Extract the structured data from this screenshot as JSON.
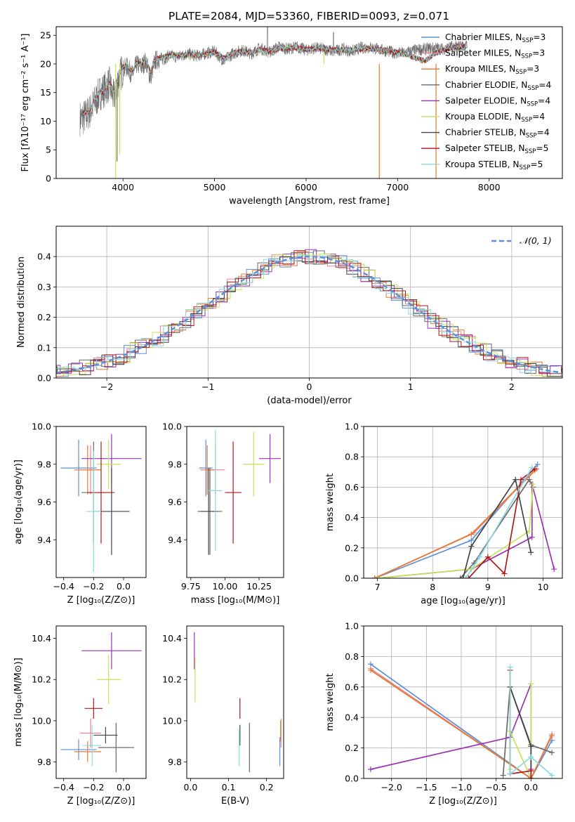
{
  "figure_title": "PLATE=2084, MJD=53360, FIBERID=0093, z=0.071",
  "colors": {
    "chabrier_miles": "#5b8fd9",
    "salpeter_miles": "#e5878f",
    "kroupa_miles": "#e8782f",
    "chabrier_elodie": "#6a6a6a",
    "salpeter_elodie": "#9a32b5",
    "kroupa_elodie": "#c5e35a",
    "chabrier_stelib": "#444444",
    "salpeter_stelib": "#b01818",
    "kroupa_stelib": "#8ad9e0",
    "gaussian": "#5b8fd9"
  },
  "chart_data": [
    {
      "id": "spectrum",
      "type": "line",
      "title": "PLATE=2084, MJD=53360, FIBERID=0093, z=0.071",
      "xlabel": "wavelength [Angstrom, rest frame]",
      "ylabel": "Flux [fλ10⁻¹⁷ erg cm⁻² s⁻¹ A⁻¹]",
      "xlim": [
        3270,
        8800
      ],
      "ylim": [
        0,
        26.5
      ],
      "xticks": [
        4000,
        5000,
        6000,
        7000,
        8000
      ],
      "yticks": [
        0,
        5,
        10,
        15,
        20,
        25
      ],
      "grid": false,
      "legend_position": "upper-right",
      "observed": {
        "x": [
          3550,
          3600,
          3650,
          3700,
          3750,
          3800,
          3850,
          3900,
          3950,
          4000,
          4050,
          4100,
          4150,
          4200,
          4250,
          4300,
          4350,
          4400,
          4450,
          4500,
          4600,
          4700,
          4800,
          4900,
          5000,
          5100,
          5200,
          5300,
          5400,
          5500,
          5600,
          5700,
          5800,
          5900,
          6000,
          6100,
          6200,
          6300,
          6400,
          6500,
          6600,
          6700,
          6800,
          6900,
          7000,
          7100,
          7200,
          7300,
          7400,
          7500,
          7600,
          7700
        ],
        "y": [
          10.5,
          11.0,
          12.0,
          13.5,
          15.0,
          15.5,
          16.5,
          14.0,
          17.5,
          19.0,
          19.5,
          18.0,
          20.0,
          19.5,
          20.5,
          17.5,
          20.5,
          21.0,
          20.8,
          21.5,
          21.2,
          21.8,
          21.4,
          21.8,
          22.2,
          20.5,
          21.8,
          22.4,
          21.8,
          22.8,
          22.0,
          23.0,
          22.6,
          23.0,
          22.4,
          22.8,
          22.6,
          22.2,
          22.6,
          22.2,
          22.8,
          22.9,
          22.5,
          22.2,
          21.8,
          22.0,
          22.4,
          22.6,
          22.8,
          22.6,
          23.0,
          23.1
        ]
      },
      "model": {
        "x": [
          3550,
          3600,
          3650,
          3700,
          3750,
          3800,
          3850,
          3900,
          3950,
          4000,
          4050,
          4100,
          4150,
          4200,
          4250,
          4300,
          4350,
          4400,
          4450,
          4500,
          4600,
          4700,
          4800,
          4900,
          5000,
          5100,
          5200,
          5300,
          5400,
          5500,
          5600,
          5700,
          5800,
          5900,
          6000,
          6100,
          6200,
          6300,
          6400,
          6500,
          6600,
          6700,
          6800,
          6900,
          7000,
          7100,
          7200,
          7300,
          7400,
          7500,
          7600,
          7700
        ],
        "y": [
          11.2,
          11.6,
          12.2,
          14.0,
          15.2,
          15.0,
          16.8,
          15.0,
          17.8,
          19.5,
          19.8,
          18.5,
          20.2,
          20.0,
          20.6,
          18.5,
          20.8,
          21.0,
          21.2,
          21.4,
          21.5,
          21.6,
          21.5,
          21.7,
          22.0,
          21.0,
          21.9,
          22.2,
          22.0,
          22.5,
          22.2,
          22.7,
          22.7,
          22.8,
          22.5,
          22.6,
          22.6,
          22.4,
          22.5,
          22.4,
          22.6,
          22.7,
          22.5,
          22.3,
          22.0,
          21.6,
          21.0,
          20.5,
          21.8,
          22.4,
          22.9,
          23.0
        ]
      },
      "series_names": [
        "Chabrier MILES, N<sub>SSP</sub>=3",
        "Salpeter MILES, N<sub>SSP</sub>=3",
        "Kroupa MILES, N<sub>SSP</sub>=3",
        "Chabrier ELODIE, N<sub>SSP</sub>=4",
        "Salpeter ELODIE, N<sub>SSP</sub>=4",
        "Kroupa ELODIE, N<sub>SSP</sub>=4",
        "Chabrier STELIB, N<sub>SSP</sub>=4",
        "Salpeter STELIB, N<sub>SSP</sub>=5",
        "Kroupa STELIB, N<sub>SSP</sub>=5"
      ],
      "legend": [
        {
          "label": "Chabrier MILES, N",
          "sub": "SSP",
          "tail": "=3",
          "color": "#5b8fd9"
        },
        {
          "label": "Salpeter MILES, N",
          "sub": "SSP",
          "tail": "=3",
          "color": "#e5878f"
        },
        {
          "label": "Kroupa MILES, N",
          "sub": "SSP",
          "tail": "=3",
          "color": "#e8782f"
        },
        {
          "label": "Chabrier ELODIE, N",
          "sub": "SSP",
          "tail": "=4",
          "color": "#6a6a6a"
        },
        {
          "label": "Salpeter ELODIE, N",
          "sub": "SSP",
          "tail": "=4",
          "color": "#9a32b5"
        },
        {
          "label": "Kroupa ELODIE, N",
          "sub": "SSP",
          "tail": "=4",
          "color": "#c5e35a"
        },
        {
          "label": "Chabrier STELIB, N",
          "sub": "SSP",
          "tail": "=4",
          "color": "#444444"
        },
        {
          "label": "Salpeter STELIB, N",
          "sub": "SSP",
          "tail": "=5",
          "color": "#b01818"
        },
        {
          "label": "Kroupa STELIB, N",
          "sub": "SSP",
          "tail": "=5",
          "color": "#8ad9e0"
        }
      ]
    },
    {
      "id": "residuals",
      "type": "area",
      "xlabel": "(data-model)/error",
      "ylabel": "Normed distribution",
      "xlim": [
        -2.5,
        2.5
      ],
      "ylim": [
        0,
        0.5
      ],
      "xticks": [
        -2,
        -1,
        0,
        1,
        2
      ],
      "yticks": [
        0.0,
        0.1,
        0.2,
        0.3,
        0.4
      ],
      "grid": true,
      "legend_position": "upper-right",
      "gaussian": {
        "name": "𝒩(0, 1)",
        "mean": 0,
        "sigma": 1
      },
      "histogram_peak": 0.4
    },
    {
      "id": "age_vs_z",
      "type": "scatter",
      "xlabel": "Z [log₁₀(Z/Z⊙)]",
      "ylabel": "age [log₁₀(age/yr)]",
      "xlim": [
        -0.45,
        0.15
      ],
      "ylim": [
        9.2,
        10.0
      ],
      "xticks": [
        -0.4,
        -0.2,
        0.0
      ],
      "yticks": [
        9.4,
        9.6,
        9.8,
        10.0
      ],
      "grid": false,
      "points": [
        {
          "x": -0.3,
          "y": 9.78,
          "ex": 0.12,
          "ey": 0.15
        },
        {
          "x": -0.22,
          "y": 9.77,
          "ex": 0.07,
          "ey": 0.13
        },
        {
          "x": -0.24,
          "y": 9.77,
          "ex": 0.09,
          "ey": 0.13
        },
        {
          "x": -0.2,
          "y": 9.65,
          "ex": 0.08,
          "ey": 0.27
        },
        {
          "x": -0.08,
          "y": 9.83,
          "ex": 0.2,
          "ey": 0.13
        },
        {
          "x": -0.1,
          "y": 9.8,
          "ex": 0.08,
          "ey": 0.13
        },
        {
          "x": -0.08,
          "y": 9.55,
          "ex": 0.12,
          "ey": 0.23
        },
        {
          "x": -0.15,
          "y": 9.65,
          "ex": 0.09,
          "ey": 0.27
        },
        {
          "x": -0.2,
          "y": 9.55,
          "ex": 0.05,
          "ey": 0.32
        }
      ]
    },
    {
      "id": "age_vs_mass",
      "type": "scatter",
      "xlabel": "mass [log₁₀(M/M⊙)]",
      "xlim": [
        9.72,
        10.43
      ],
      "ylim": [
        9.2,
        10.0
      ],
      "xticks": [
        9.75,
        10.0,
        10.25
      ],
      "yticks": [
        9.4,
        9.6,
        9.8,
        10.0
      ],
      "grid": false,
      "points": [
        {
          "x": 9.86,
          "y": 9.78,
          "ex": 0.05,
          "ey": 0.15
        },
        {
          "x": 9.93,
          "y": 9.77,
          "ex": 0.07,
          "ey": 0.13
        },
        {
          "x": 9.87,
          "y": 9.77,
          "ex": 0.05,
          "ey": 0.13
        },
        {
          "x": 9.89,
          "y": 9.55,
          "ex": 0.09,
          "ey": 0.23
        },
        {
          "x": 10.33,
          "y": 9.83,
          "ex": 0.08,
          "ey": 0.13
        },
        {
          "x": 10.21,
          "y": 9.8,
          "ex": 0.08,
          "ey": 0.17
        },
        {
          "x": 9.88,
          "y": 9.55,
          "ex": 0.06,
          "ey": 0.23
        },
        {
          "x": 10.06,
          "y": 9.65,
          "ex": 0.06,
          "ey": 0.27
        },
        {
          "x": 9.93,
          "y": 9.66,
          "ex": 0.05,
          "ey": 0.32
        }
      ]
    },
    {
      "id": "weight_vs_age",
      "type": "line",
      "xlabel": "age [log₁₀(age/yr)]",
      "ylabel": "mass weight",
      "xlim": [
        6.75,
        10.35
      ],
      "ylim": [
        0,
        1.0
      ],
      "xticks": [
        7,
        8,
        9,
        10
      ],
      "yticks": [
        0.0,
        0.2,
        0.4,
        0.6,
        0.8,
        1.0
      ],
      "grid": true,
      "series": [
        {
          "x": [
            6.95,
            8.7,
            9.9
          ],
          "y": [
            0.0,
            0.25,
            0.75
          ]
        },
        {
          "x": [
            6.95,
            8.75,
            9.88
          ],
          "y": [
            0.0,
            0.3,
            0.72
          ]
        },
        {
          "x": [
            6.95,
            8.7,
            9.85
          ],
          "y": [
            0.0,
            0.29,
            0.71
          ]
        },
        {
          "x": [
            8.5,
            8.75,
            9.75,
            9.82
          ],
          "y": [
            0.0,
            0.1,
            0.65,
            0.6
          ]
        },
        {
          "x": [
            7.0,
            8.7,
            9.8,
            9.8,
            10.2
          ],
          "y": [
            0.0,
            0.06,
            0.27,
            0.62,
            0.06
          ]
        },
        {
          "x": [
            7.0,
            8.7,
            9.75,
            9.82
          ],
          "y": [
            0.0,
            0.06,
            0.31,
            0.62
          ]
        },
        {
          "x": [
            8.55,
            8.7,
            9.5,
            9.78
          ],
          "y": [
            0.0,
            0.21,
            0.65,
            0.17
          ]
        },
        {
          "x": [
            8.65,
            9.0,
            9.3,
            9.6,
            9.85
          ],
          "y": [
            0.0,
            0.14,
            0.03,
            0.65,
            0.72
          ]
        },
        {
          "x": [
            8.6,
            8.85,
            9.8
          ],
          "y": [
            0.0,
            0.14,
            0.73
          ]
        }
      ]
    },
    {
      "id": "mass_vs_z",
      "type": "scatter",
      "xlabel": "Z [log₁₀(Z/Z⊙)]",
      "ylabel": "mass [log₁₀(M/M⊙)]",
      "xlim": [
        -0.45,
        0.15
      ],
      "ylim": [
        9.72,
        10.46
      ],
      "xticks": [
        -0.4,
        -0.2,
        0.0
      ],
      "yticks": [
        9.8,
        10.0,
        10.2,
        10.4
      ],
      "grid": false,
      "points": [
        {
          "x": -0.3,
          "y": 9.86,
          "ex": 0.12,
          "ey": 0.05
        },
        {
          "x": -0.22,
          "y": 9.94,
          "ex": 0.07,
          "ey": 0.07
        },
        {
          "x": -0.24,
          "y": 9.85,
          "ex": 0.09,
          "ey": 0.05
        },
        {
          "x": -0.05,
          "y": 9.87,
          "ex": 0.12,
          "ey": 0.12
        },
        {
          "x": -0.08,
          "y": 10.34,
          "ex": 0.2,
          "ey": 0.09
        },
        {
          "x": -0.1,
          "y": 10.2,
          "ex": 0.08,
          "ey": 0.12
        },
        {
          "x": -0.12,
          "y": 9.93,
          "ex": 0.08,
          "ey": 0.04
        },
        {
          "x": -0.2,
          "y": 10.06,
          "ex": 0.06,
          "ey": 0.05
        },
        {
          "x": -0.21,
          "y": 9.88,
          "ex": 0.06,
          "ey": 0.1
        }
      ]
    },
    {
      "id": "mass_vs_ebv",
      "type": "scatter",
      "xlabel": "E(B-V)",
      "xlim": [
        -0.01,
        0.245
      ],
      "ylim": [
        9.72,
        10.46
      ],
      "xticks": [
        0.0,
        0.1,
        0.2
      ],
      "yticks": [
        9.8,
        10.0,
        10.2,
        10.4
      ],
      "grid": false,
      "points": [
        {
          "x": 0.235,
          "y": 9.85,
          "ey": 0.07
        },
        {
          "x": 0.238,
          "y": 9.94,
          "ey": 0.07
        },
        {
          "x": 0.237,
          "y": 9.95,
          "ey": 0.05
        },
        {
          "x": 0.155,
          "y": 9.87,
          "ey": 0.12
        },
        {
          "x": 0.01,
          "y": 10.34,
          "ey": 0.09
        },
        {
          "x": 0.012,
          "y": 10.2,
          "ey": 0.11
        },
        {
          "x": 0.13,
          "y": 9.93,
          "ey": 0.05
        },
        {
          "x": 0.13,
          "y": 10.06,
          "ey": 0.05
        },
        {
          "x": 0.128,
          "y": 9.87,
          "ey": 0.09
        }
      ]
    },
    {
      "id": "weight_vs_z",
      "type": "line",
      "xlabel": "Z [log₁₀(Z/Z⊙)]",
      "ylabel": "mass weight",
      "xlim": [
        -2.4,
        0.45
      ],
      "ylim": [
        0,
        1.0
      ],
      "xticks": [
        -2.0,
        -1.5,
        -1.0,
        -0.5,
        0.0
      ],
      "yticks": [
        0.0,
        0.2,
        0.4,
        0.6,
        0.8,
        1.0
      ],
      "grid": true,
      "series": [
        {
          "x": [
            -2.3,
            0.0,
            0.3
          ],
          "y": [
            0.75,
            0.0,
            0.25
          ]
        },
        {
          "x": [
            -2.3,
            0.0,
            0.3
          ],
          "y": [
            0.72,
            0.0,
            0.29
          ]
        },
        {
          "x": [
            -2.3,
            0.0,
            0.3
          ],
          "y": [
            0.71,
            0.0,
            0.28
          ]
        },
        {
          "x": [
            -0.4,
            -0.3,
            0.0,
            0.3
          ],
          "y": [
            0.02,
            0.6,
            0.22,
            0.17
          ]
        },
        {
          "x": [
            -2.3,
            -0.3,
            0.0,
            0.0
          ],
          "y": [
            0.06,
            0.27,
            0.62,
            0.06
          ]
        },
        {
          "x": [
            -0.3,
            -0.3,
            0.0,
            0.0
          ],
          "y": [
            0.06,
            0.31,
            0.0,
            0.62
          ]
        },
        {
          "x": [
            -0.3,
            0.0,
            0.0
          ],
          "y": [
            0.6,
            0.21,
            0.0
          ]
        },
        {
          "x": [
            -0.3,
            -0.3,
            0.0,
            0.0
          ],
          "y": [
            0.71,
            0.03,
            0.05,
            0.0
          ]
        },
        {
          "x": [
            -0.3,
            -0.3,
            0.0,
            0.3
          ],
          "y": [
            0.73,
            0.03,
            0.14,
            0.02
          ]
        }
      ]
    }
  ]
}
